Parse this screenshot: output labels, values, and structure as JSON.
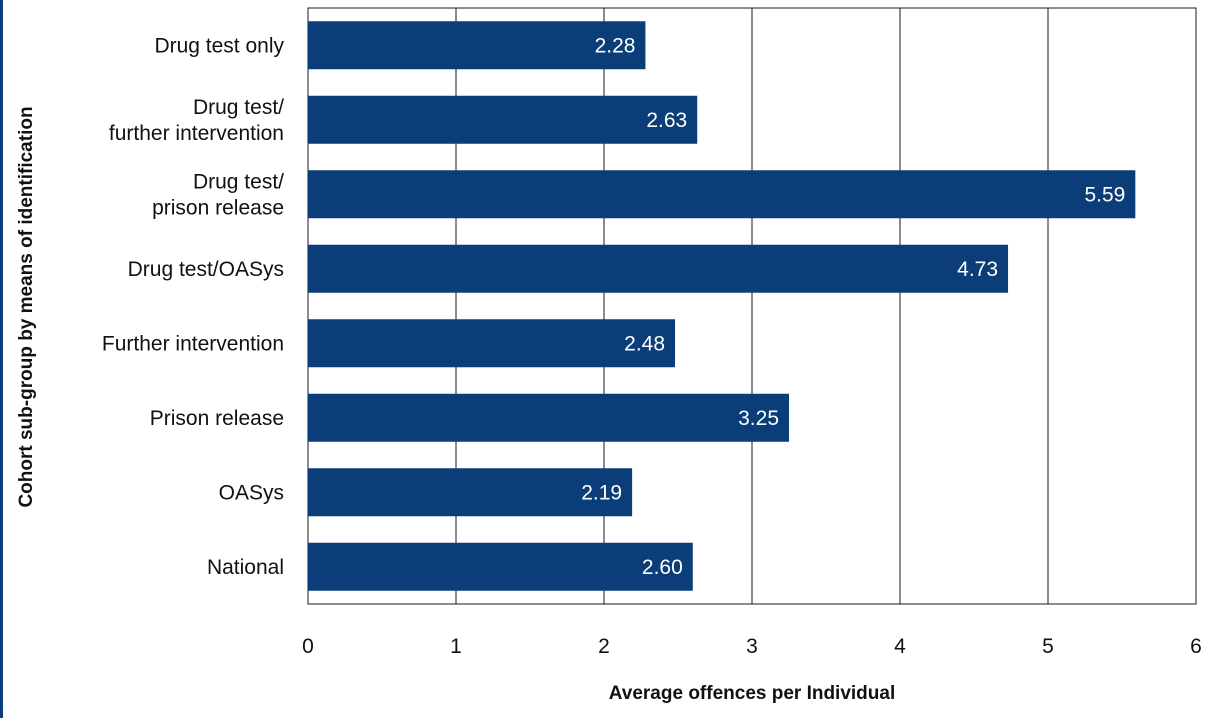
{
  "chart_data": {
    "type": "bar",
    "orientation": "horizontal",
    "categories": [
      [
        "Drug test only"
      ],
      [
        "Drug test/",
        "further intervention"
      ],
      [
        "Drug test/",
        "prison release"
      ],
      [
        "Drug test/OASys"
      ],
      [
        "Further intervention"
      ],
      [
        "Prison release"
      ],
      [
        "OASys"
      ],
      [
        "National"
      ]
    ],
    "values": [
      2.28,
      2.63,
      5.59,
      4.73,
      2.48,
      3.25,
      2.19,
      2.6
    ],
    "value_labels": [
      "2.28",
      "2.63",
      "5.59",
      "4.73",
      "2.48",
      "3.25",
      "2.19",
      "2.60"
    ],
    "xlabel": "Average offences per Individual",
    "ylabel": "Cohort sub-group by means of identification",
    "xlim": [
      0,
      6
    ],
    "xticks": [
      "0",
      "1",
      "2",
      "3",
      "4",
      "5",
      "6"
    ],
    "grid": "vertical",
    "colors": {
      "bar": "#0b3e79",
      "bar_label": "#ffffff",
      "grid": "#1a1a1a",
      "text": "#111111"
    }
  }
}
